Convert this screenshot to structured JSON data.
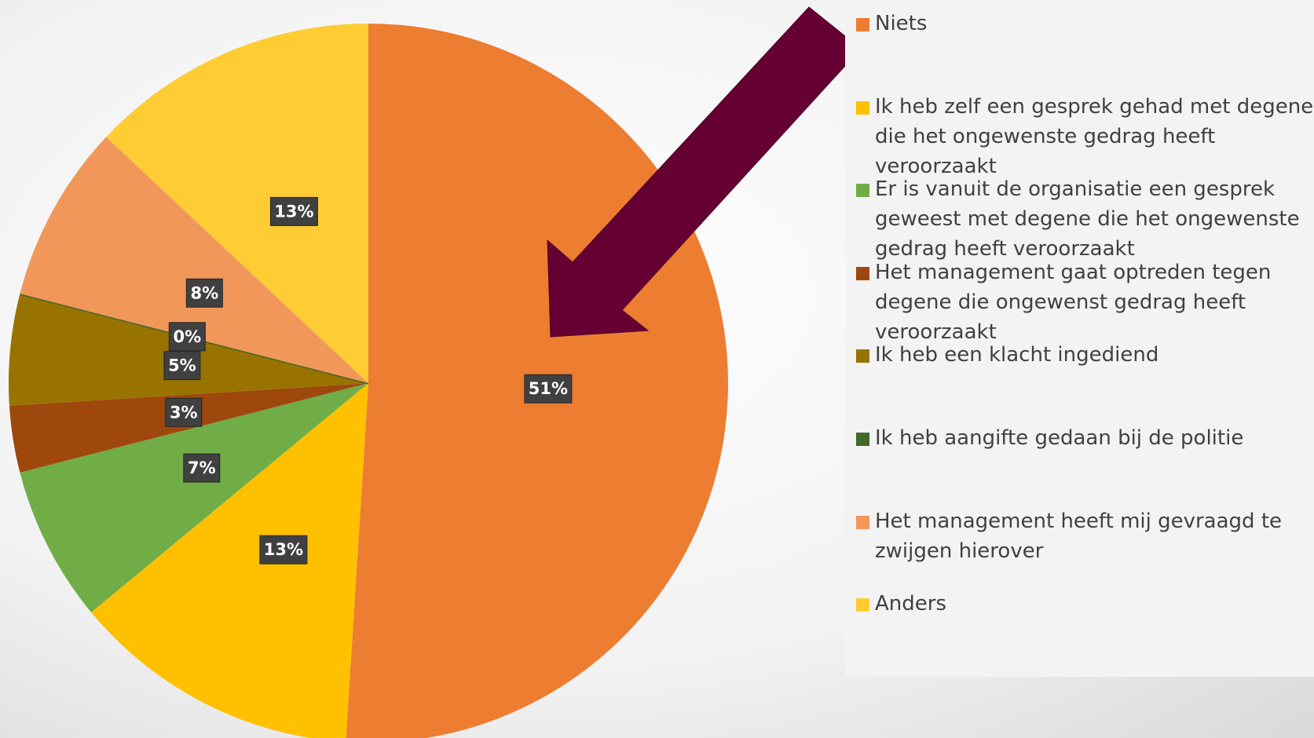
{
  "chart_data": {
    "type": "pie",
    "categories": [
      "Niets",
      "Ik heb zelf een gesprek gehad met degene die het ongewenste gedrag heeft veroorzaakt",
      "Er is vanuit de organisatie een gesprek geweest met degene die het ongewenste gedrag heeft veroorzaakt",
      "Het management gaat optreden tegen degene die ongewenst gedrag heeft veroorzaakt",
      "Ik heb een klacht ingediend",
      "Ik heb aangifte gedaan bij de politie",
      "Het management heeft mij gevraagd te zwijgen hierover",
      "Anders"
    ],
    "values": [
      51,
      13,
      7,
      3,
      5,
      0,
      8,
      13
    ],
    "value_labels": [
      "51%",
      "13%",
      "7%",
      "3%",
      "5%",
      "0%",
      "8%",
      "13%"
    ],
    "colors": [
      "#ED7D31",
      "#FFC000",
      "#70AD47",
      "#9E480E",
      "#997300",
      "#43682B",
      "#F1975A",
      "#FFCD33"
    ],
    "legend": "right"
  }
}
